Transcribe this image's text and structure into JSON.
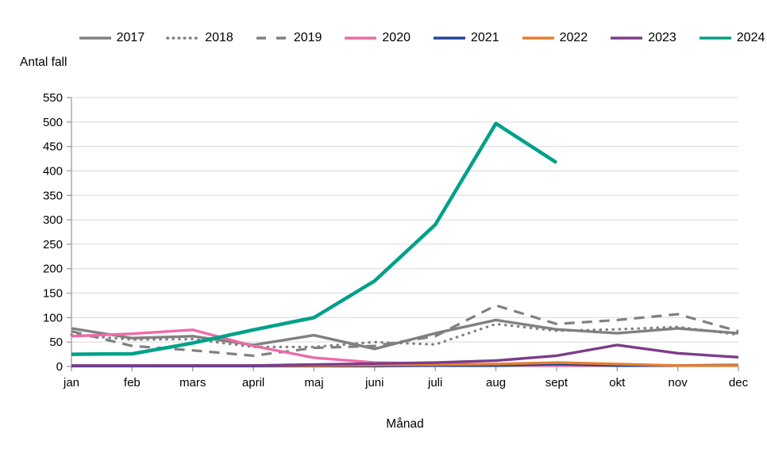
{
  "chart_data": {
    "type": "line",
    "title": "",
    "ylabel": "Antal fall",
    "xlabel": "Månad",
    "ylim": [
      0,
      550
    ],
    "yticks": [
      0,
      50,
      100,
      150,
      200,
      250,
      300,
      350,
      400,
      450,
      500,
      550
    ],
    "categories": [
      "jan",
      "feb",
      "mars",
      "april",
      "maj",
      "juni",
      "juli",
      "aug",
      "sept",
      "okt",
      "nov",
      "dec"
    ],
    "grid": "horizontal-light",
    "legend_position": "top",
    "series": [
      {
        "name": "2017",
        "color": "#808080",
        "style": "solid",
        "values": [
          78,
          58,
          62,
          44,
          64,
          36,
          68,
          95,
          76,
          68,
          78,
          68
        ]
      },
      {
        "name": "2018",
        "color": "#808080",
        "style": "dotted",
        "values": [
          65,
          55,
          56,
          40,
          40,
          50,
          45,
          87,
          73,
          76,
          81,
          65
        ]
      },
      {
        "name": "2019",
        "color": "#808080",
        "style": "dashed",
        "values": [
          72,
          42,
          33,
          22,
          38,
          42,
          62,
          125,
          87,
          95,
          107,
          72
        ]
      },
      {
        "name": "2020",
        "color": "#ee6ba8",
        "style": "solid",
        "values": [
          62,
          67,
          75,
          42,
          18,
          8,
          6,
          3,
          2,
          2,
          2,
          2
        ]
      },
      {
        "name": "2021",
        "color": "#21459c",
        "style": "solid",
        "values": [
          1,
          1,
          1,
          1,
          1,
          1,
          2,
          2,
          5,
          2,
          2,
          3
        ]
      },
      {
        "name": "2022",
        "color": "#e87d2e",
        "style": "solid",
        "values": [
          2,
          2,
          2,
          2,
          2,
          3,
          4,
          5,
          8,
          5,
          2,
          2
        ]
      },
      {
        "name": "2023",
        "color": "#7d3c8c",
        "style": "solid",
        "values": [
          2,
          2,
          2,
          2,
          4,
          6,
          8,
          12,
          22,
          44,
          27,
          19
        ]
      },
      {
        "name": "2024",
        "color": "#00a189",
        "style": "solid",
        "values": [
          25,
          26,
          48,
          75,
          100,
          175,
          290,
          497,
          417,
          null,
          null,
          null
        ]
      }
    ]
  }
}
